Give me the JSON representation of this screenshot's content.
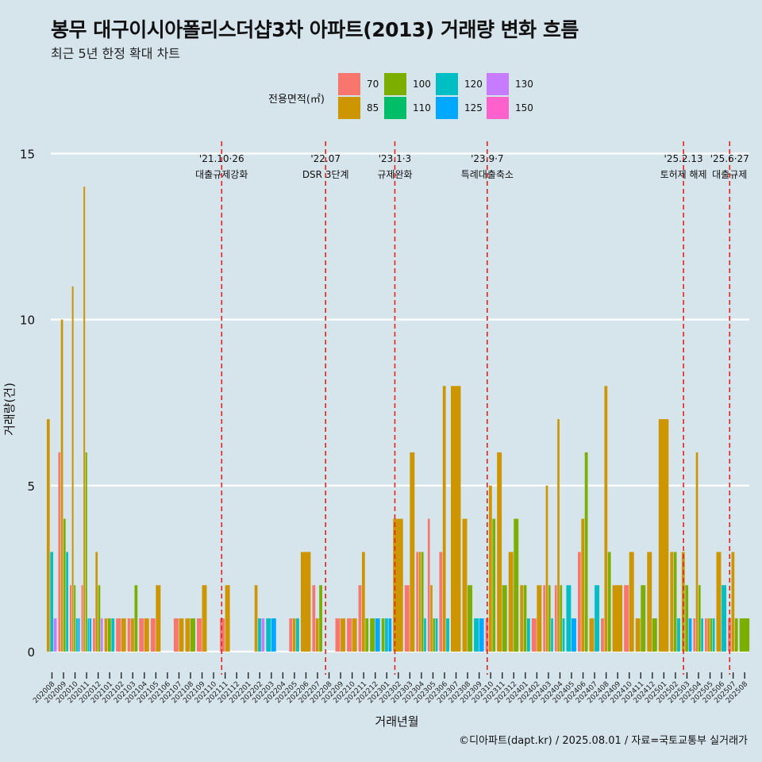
{
  "header": {
    "title": "봉무 대구이시아폴리스더샵3차 아파트(2013) 거래량 변화 흐름",
    "subtitle": "최근 5년 한정 확대 차트"
  },
  "legend": {
    "title": "전용면적(㎡)",
    "items": [
      {
        "label": "70",
        "color": "#F8766D"
      },
      {
        "label": "85",
        "color": "#CD9600"
      },
      {
        "label": "100",
        "color": "#7CAE00"
      },
      {
        "label": "110",
        "color": "#00BE67"
      },
      {
        "label": "120",
        "color": "#00BFC4"
      },
      {
        "label": "125",
        "color": "#00A9FF"
      },
      {
        "label": "130",
        "color": "#C77CFF"
      },
      {
        "label": "150",
        "color": "#FF61CC"
      }
    ]
  },
  "caption": "©디아파트(dapt.kr) / 2025.08.01 / 자료=국토교통부 실거래가",
  "chart_data": {
    "type": "bar",
    "xlabel": "거래년월",
    "ylabel": "거래량(건)",
    "ylim": [
      -0.6,
      15.8
    ],
    "yticks": [
      0,
      5,
      10,
      15
    ],
    "grid": true,
    "categories": [
      "202008",
      "202009",
      "202010",
      "202011",
      "202012",
      "202101",
      "202102",
      "202103",
      "202104",
      "202105",
      "202106",
      "202107",
      "202108",
      "202109",
      "202110",
      "202111",
      "202112",
      "202201",
      "202202",
      "202203",
      "202204",
      "202205",
      "202206",
      "202207",
      "202208",
      "202209",
      "202210",
      "202211",
      "202212",
      "202301",
      "202302",
      "202303",
      "202304",
      "202305",
      "202306",
      "202307",
      "202308",
      "202309",
      "202310",
      "202311",
      "202312",
      "202401",
      "202402",
      "202403",
      "202404",
      "202405",
      "202406",
      "202407",
      "202408",
      "202409",
      "202410",
      "202411",
      "202412",
      "202501",
      "202502",
      "202503",
      "202504",
      "202505",
      "202506",
      "202507",
      "202508"
    ],
    "series": [
      {
        "name": "70",
        "values": [
          0,
          6,
          2,
          2,
          1,
          0,
          1,
          1,
          1,
          1,
          0,
          1,
          0,
          1,
          0,
          1,
          0,
          0,
          0,
          0,
          0,
          1,
          0,
          2,
          0,
          1,
          1,
          2,
          0,
          0,
          0,
          2,
          3,
          4,
          3,
          0,
          0,
          0,
          1,
          0,
          0,
          0,
          1,
          2,
          2,
          0,
          3,
          0,
          1,
          0,
          2,
          0,
          0,
          0,
          0,
          0,
          1,
          1,
          0,
          1,
          0
        ]
      },
      {
        "name": "85",
        "values": [
          7,
          10,
          11,
          14,
          3,
          1,
          1,
          1,
          1,
          2,
          0,
          1,
          1,
          2,
          0,
          2,
          0,
          0,
          2,
          0,
          0,
          1,
          3,
          1,
          0,
          1,
          1,
          3,
          0,
          0,
          4,
          6,
          3,
          2,
          8,
          8,
          4,
          0,
          5,
          6,
          3,
          2,
          2,
          5,
          7,
          0,
          4,
          1,
          8,
          2,
          3,
          1,
          3,
          7,
          3,
          3,
          6,
          1,
          3,
          3,
          0
        ]
      },
      {
        "name": "100",
        "values": [
          0,
          4,
          2,
          6,
          2,
          1,
          0,
          2,
          0,
          0,
          0,
          0,
          1,
          0,
          0,
          0,
          0,
          0,
          0,
          0,
          0,
          0,
          0,
          2,
          0,
          0,
          0,
          1,
          1,
          1,
          0,
          0,
          3,
          1,
          0,
          0,
          2,
          0,
          4,
          2,
          4,
          2,
          0,
          2,
          2,
          0,
          6,
          0,
          3,
          0,
          0,
          2,
          1,
          0,
          3,
          2,
          2,
          1,
          0,
          1,
          1
        ]
      },
      {
        "name": "110",
        "values": [
          0,
          0,
          0,
          0,
          0,
          0,
          0,
          0,
          0,
          0,
          0,
          0,
          0,
          0,
          0,
          0,
          0,
          0,
          0,
          0,
          0,
          0,
          0,
          0,
          0,
          0,
          0,
          0,
          0,
          0,
          0,
          0,
          0,
          0,
          0,
          0,
          0,
          0,
          0,
          0,
          0,
          0,
          0,
          0,
          0,
          0,
          0,
          0,
          0,
          0,
          0,
          0,
          0,
          0,
          0,
          0,
          0,
          0,
          0,
          0,
          0
        ]
      },
      {
        "name": "120",
        "values": [
          3,
          3,
          1,
          1,
          0,
          1,
          0,
          0,
          0,
          0,
          0,
          0,
          0,
          0,
          0,
          0,
          0,
          0,
          1,
          1,
          0,
          1,
          0,
          0,
          0,
          0,
          0,
          0,
          0,
          1,
          0,
          0,
          1,
          1,
          1,
          0,
          0,
          1,
          0,
          0,
          0,
          1,
          0,
          1,
          1,
          2,
          0,
          2,
          0,
          0,
          0,
          0,
          0,
          0,
          1,
          0,
          1,
          1,
          2,
          0,
          0
        ]
      },
      {
        "name": "125",
        "values": [
          0,
          0,
          1,
          1,
          0,
          0,
          0,
          0,
          0,
          0,
          0,
          0,
          0,
          0,
          0,
          0,
          0,
          0,
          0,
          1,
          0,
          0,
          0,
          0,
          0,
          0,
          0,
          0,
          1,
          1,
          0,
          0,
          0,
          0,
          0,
          0,
          0,
          1,
          0,
          0,
          0,
          0,
          0,
          0,
          0,
          1,
          0,
          0,
          0,
          0,
          0,
          0,
          0,
          0,
          0,
          1,
          0,
          0,
          0,
          0,
          0
        ]
      },
      {
        "name": "130",
        "values": [
          1,
          0,
          0,
          0,
          1,
          0,
          0,
          0,
          0,
          0,
          0,
          0,
          0,
          0,
          0,
          0,
          0,
          0,
          1,
          0,
          0,
          0,
          0,
          0,
          0,
          0,
          0,
          0,
          0,
          0,
          0,
          0,
          0,
          0,
          0,
          0,
          0,
          0,
          0,
          0,
          0,
          0,
          0,
          0,
          0,
          0,
          0,
          0,
          0,
          0,
          0,
          0,
          0,
          0,
          0,
          0,
          0,
          0,
          0,
          0,
          0
        ]
      },
      {
        "name": "150",
        "values": [
          0,
          0,
          0,
          0,
          0,
          0,
          0,
          0,
          0,
          0,
          0,
          0,
          0,
          0,
          0,
          0,
          0,
          0,
          0,
          0,
          0,
          0,
          0,
          0,
          0,
          0,
          0,
          0,
          0,
          0,
          0,
          0,
          0,
          0,
          0,
          0,
          0,
          0,
          0,
          0,
          0,
          0,
          0,
          0,
          0,
          0,
          0,
          0,
          0,
          0,
          0,
          0,
          0,
          0,
          0,
          0,
          0,
          0,
          0,
          0,
          0
        ]
      }
    ],
    "annotations": [
      {
        "x": 14.7,
        "date": "'21.10·26",
        "label": "대출규제강화"
      },
      {
        "x": 23.7,
        "date": "'22.07",
        "label": "DSR 3단계"
      },
      {
        "x": 29.7,
        "date": "'23.1·3",
        "label": "규제완화"
      },
      {
        "x": 37.7,
        "date": "'23.9·7",
        "label": "특례대출축소"
      },
      {
        "x": 54.7,
        "date": "'25.2.13",
        "label": "토허제 해제"
      },
      {
        "x": 58.7,
        "date": "'25.6·27",
        "label": "대출규제"
      }
    ]
  }
}
